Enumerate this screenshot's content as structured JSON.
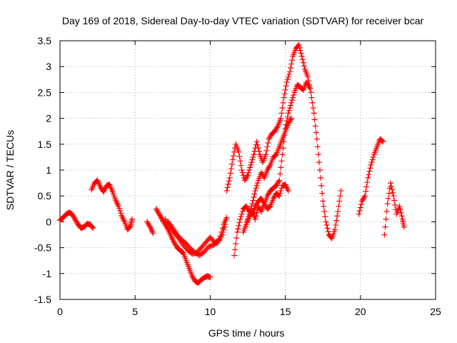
{
  "chart_data": {
    "type": "scatter",
    "title": "Day 169 of 2018, Sidereal Day-to-day VTEC variation (SDTVAR) for receiver bcar",
    "xlabel": "GPS time / hours",
    "ylabel": "SDTVAR / TECUs",
    "xlim": [
      0,
      25
    ],
    "ylim": [
      -1.5,
      3.5
    ],
    "xticks": [
      "0",
      "5",
      "10",
      "15",
      "20",
      "25"
    ],
    "yticks": [
      "-1.5",
      "-1",
      "-0.5",
      "0",
      "0.5",
      "1",
      "1.5",
      "2",
      "2.5",
      "3",
      "3.5"
    ],
    "grid": true,
    "marker": "+",
    "series": [
      {
        "name": "SDTVAR",
        "color": "#ff0000",
        "segments": [
          [
            [
              0.0,
              0.03
            ],
            [
              0.2,
              0.08
            ],
            [
              0.4,
              0.14
            ],
            [
              0.6,
              0.18
            ],
            [
              0.8,
              0.15
            ],
            [
              1.0,
              0.05
            ],
            [
              1.2,
              -0.05
            ],
            [
              1.4,
              -0.12
            ],
            [
              1.6,
              -0.1
            ],
            [
              1.8,
              -0.04
            ],
            [
              2.0,
              -0.05
            ],
            [
              2.2,
              -0.12
            ]
          ],
          [
            [
              2.1,
              0.62
            ],
            [
              2.3,
              0.75
            ],
            [
              2.5,
              0.8
            ],
            [
              2.7,
              0.67
            ],
            [
              2.9,
              0.58
            ],
            [
              3.1,
              0.7
            ],
            [
              3.3,
              0.72
            ],
            [
              3.5,
              0.58
            ],
            [
              3.7,
              0.42
            ],
            [
              3.9,
              0.3
            ],
            [
              4.1,
              0.12
            ],
            [
              4.3,
              0.0
            ],
            [
              4.5,
              -0.15
            ],
            [
              4.7,
              -0.08
            ],
            [
              4.8,
              0.05
            ]
          ],
          [
            [
              5.8,
              0.0
            ],
            [
              6.0,
              -0.1
            ],
            [
              6.2,
              -0.22
            ]
          ],
          [
            [
              6.4,
              0.25
            ],
            [
              6.6,
              0.15
            ],
            [
              6.8,
              0.05
            ],
            [
              7.0,
              -0.05
            ],
            [
              7.2,
              -0.15
            ],
            [
              7.4,
              -0.28
            ],
            [
              7.6,
              -0.4
            ],
            [
              7.8,
              -0.5
            ],
            [
              8.0,
              -0.55
            ],
            [
              8.2,
              -0.6
            ],
            [
              8.4,
              -0.75
            ],
            [
              8.6,
              -0.9
            ],
            [
              8.8,
              -1.05
            ],
            [
              9.0,
              -1.15
            ],
            [
              9.2,
              -1.18
            ],
            [
              9.4,
              -1.12
            ],
            [
              9.6,
              -1.08
            ],
            [
              9.8,
              -1.05
            ],
            [
              10.0,
              -1.07
            ]
          ],
          [
            [
              7.0,
              0.05
            ],
            [
              7.3,
              -0.1
            ],
            [
              7.6,
              -0.2
            ],
            [
              7.9,
              -0.32
            ],
            [
              8.2,
              -0.45
            ],
            [
              8.5,
              -0.55
            ],
            [
              8.8,
              -0.62
            ],
            [
              9.1,
              -0.6
            ],
            [
              9.4,
              -0.5
            ],
            [
              9.7,
              -0.4
            ],
            [
              10.0,
              -0.3
            ],
            [
              10.3,
              -0.4
            ],
            [
              10.6,
              -0.35
            ],
            [
              10.9,
              -0.05
            ],
            [
              11.1,
              0.08
            ]
          ],
          [
            [
              7.2,
              0.0
            ],
            [
              7.5,
              -0.12
            ],
            [
              7.8,
              -0.25
            ],
            [
              8.1,
              -0.35
            ],
            [
              8.4,
              -0.42
            ],
            [
              8.7,
              -0.52
            ],
            [
              9.0,
              -0.6
            ],
            [
              9.3,
              -0.65
            ],
            [
              9.6,
              -0.58
            ],
            [
              9.9,
              -0.48
            ],
            [
              10.2,
              -0.45
            ],
            [
              10.5,
              -0.4
            ],
            [
              10.8,
              -0.25
            ],
            [
              11.0,
              -0.05
            ]
          ],
          [
            [
              11.1,
              0.6
            ],
            [
              11.3,
              0.85
            ],
            [
              11.5,
              1.2
            ],
            [
              11.7,
              1.5
            ],
            [
              11.9,
              1.35
            ],
            [
              12.1,
              1.0
            ],
            [
              12.3,
              0.8
            ],
            [
              12.5,
              0.9
            ],
            [
              12.7,
              1.1
            ],
            [
              12.9,
              1.3
            ],
            [
              13.1,
              1.55
            ],
            [
              13.3,
              1.3
            ],
            [
              13.5,
              1.15
            ],
            [
              13.7,
              1.3
            ],
            [
              13.9,
              1.6
            ],
            [
              14.1,
              1.7
            ],
            [
              14.3,
              1.75
            ],
            [
              14.5,
              1.85
            ],
            [
              14.7,
              2.0
            ],
            [
              14.9,
              2.4
            ],
            [
              15.1,
              2.7
            ],
            [
              15.3,
              2.9
            ],
            [
              15.5,
              3.2
            ],
            [
              15.7,
              3.35
            ],
            [
              15.9,
              3.42
            ],
            [
              16.1,
              3.2
            ],
            [
              16.3,
              2.95
            ],
            [
              16.5,
              2.8
            ],
            [
              16.7,
              2.5
            ],
            [
              16.9,
              2.1
            ],
            [
              17.1,
              1.6
            ],
            [
              17.3,
              1.0
            ],
            [
              17.5,
              0.4
            ],
            [
              17.7,
              0.0
            ],
            [
              17.9,
              -0.25
            ],
            [
              18.1,
              -0.32
            ],
            [
              18.3,
              -0.15
            ],
            [
              18.5,
              0.2
            ],
            [
              18.7,
              0.6
            ]
          ],
          [
            [
              11.6,
              -0.65
            ],
            [
              11.8,
              -0.2
            ],
            [
              12.0,
              0.05
            ],
            [
              12.2,
              0.25
            ],
            [
              12.4,
              0.3
            ],
            [
              12.6,
              0.2
            ],
            [
              12.8,
              0.15
            ],
            [
              13.0,
              0.3
            ],
            [
              13.2,
              0.4
            ],
            [
              13.4,
              0.45
            ],
            [
              13.6,
              0.35
            ],
            [
              13.8,
              0.5
            ],
            [
              14.0,
              0.6
            ],
            [
              14.2,
              0.65
            ],
            [
              14.4,
              0.7
            ],
            [
              14.6,
              0.8
            ],
            [
              14.8,
              1.3
            ],
            [
              15.0,
              1.8
            ],
            [
              15.2,
              2.1
            ],
            [
              15.4,
              2.3
            ],
            [
              15.6,
              2.5
            ],
            [
              15.8,
              2.65
            ],
            [
              16.0,
              2.6
            ],
            [
              16.2,
              2.55
            ],
            [
              16.4,
              2.7
            ],
            [
              16.6,
              2.6
            ]
          ],
          [
            [
              12.2,
              -0.2
            ],
            [
              12.4,
              -0.05
            ],
            [
              12.6,
              0.15
            ],
            [
              12.8,
              0.35
            ],
            [
              13.0,
              0.6
            ],
            [
              13.2,
              0.8
            ],
            [
              13.4,
              0.95
            ],
            [
              13.6,
              0.85
            ],
            [
              13.8,
              1.0
            ],
            [
              14.0,
              1.1
            ],
            [
              14.2,
              1.25
            ],
            [
              14.4,
              1.3
            ],
            [
              14.6,
              1.45
            ],
            [
              14.8,
              1.6
            ],
            [
              15.0,
              1.75
            ],
            [
              15.2,
              1.9
            ],
            [
              15.4,
              2.0
            ]
          ],
          [
            [
              12.4,
              -0.05
            ],
            [
              12.6,
              0.1
            ],
            [
              12.8,
              0.2
            ],
            [
              13.0,
              0.05
            ],
            [
              13.2,
              0.3
            ],
            [
              13.4,
              0.2
            ],
            [
              13.6,
              0.35
            ],
            [
              13.8,
              0.25
            ],
            [
              14.0,
              0.3
            ],
            [
              14.2,
              0.45
            ],
            [
              14.4,
              0.55
            ],
            [
              14.6,
              0.5
            ],
            [
              14.8,
              0.7
            ],
            [
              15.0,
              0.72
            ],
            [
              15.2,
              0.6
            ]
          ],
          [
            [
              19.9,
              0.15
            ],
            [
              20.1,
              0.4
            ],
            [
              20.3,
              0.5
            ],
            [
              20.5,
              0.85
            ],
            [
              20.7,
              1.1
            ],
            [
              20.9,
              1.3
            ],
            [
              21.1,
              1.45
            ],
            [
              21.3,
              1.6
            ],
            [
              21.5,
              1.55
            ]
          ],
          [
            [
              21.6,
              -0.25
            ],
            [
              21.8,
              0.35
            ],
            [
              22.0,
              0.75
            ],
            [
              22.2,
              0.5
            ],
            [
              22.4,
              0.15
            ],
            [
              22.6,
              0.3
            ],
            [
              22.8,
              0.05
            ],
            [
              22.9,
              -0.1
            ]
          ]
        ]
      }
    ]
  }
}
